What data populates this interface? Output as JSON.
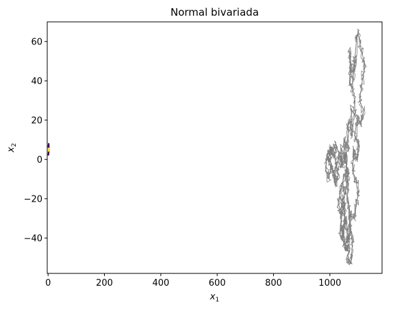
{
  "chart_data": {
    "type": "line",
    "title": "Normal bivariada",
    "xlabel": {
      "base": "x",
      "sub": "1"
    },
    "ylabel": {
      "base": "x",
      "sub": "2"
    },
    "xlim": [
      -3,
      1185
    ],
    "ylim": [
      -58,
      70
    ],
    "xticks": [
      0,
      200,
      400,
      600,
      800,
      1000
    ],
    "yticks": [
      -40,
      -20,
      0,
      20,
      40,
      60
    ],
    "grid": false,
    "legend": "none",
    "series": [
      {
        "style": "random-walk-path",
        "color": "#808080",
        "x": [
          1000,
          990,
          985,
          995,
          1005,
          1020,
          1015,
          1035,
          1045,
          1040,
          1055,
          1050,
          1065,
          1060,
          1070,
          1080,
          1075,
          1090,
          1085,
          1070,
          1072,
          1068,
          1078,
          1090,
          1080,
          1095,
          1100,
          1112,
          1125,
          1115,
          1105,
          1120,
          1110,
          1098,
          1088,
          1102,
          1095,
          1085,
          1080,
          1092,
          1100,
          1093,
          1085,
          1070,
          1075,
          1062,
          1055,
          1060,
          1050,
          1045,
          1055,
          1065,
          1070,
          1060,
          1075,
          1080,
          1070,
          1068,
          1062,
          1065,
          1058,
          1060,
          1050,
          1052,
          1042,
          1040,
          1035,
          1045,
          1055,
          1050,
          1040,
          1030,
          1038,
          1048,
          1060,
          1055,
          1045,
          1030,
          1020,
          1010,
          1000,
          995,
          1010,
          1020,
          1030,
          1025,
          1015,
          1005,
          1000
        ],
        "y": [
          -2,
          3,
          -5,
          -10,
          -3,
          -12,
          -6,
          2,
          -4,
          6,
          0,
          10,
          5,
          14,
          20,
          12,
          26,
          22,
          34,
          40,
          48,
          56,
          44,
          52,
          38,
          62,
          64,
          55,
          48,
          40,
          30,
          25,
          18,
          22,
          12,
          8,
          0,
          5,
          -6,
          -10,
          -18,
          -24,
          -30,
          -28,
          -36,
          -40,
          -44,
          -46,
          -42,
          -35,
          -30,
          -38,
          -46,
          -50,
          -53,
          -42,
          -34,
          -26,
          -20,
          -10,
          -4,
          -14,
          -18,
          -24,
          -20,
          -30,
          -38,
          -40,
          -32,
          -24,
          -28,
          -22,
          -16,
          -10,
          -6,
          2,
          -2,
          4,
          8,
          4,
          6,
          0,
          -6,
          -12,
          -8,
          -4,
          2,
          4,
          0
        ]
      },
      {
        "style": "short-segment",
        "color": "#440154",
        "x": [
          1,
          3,
          2,
          1
        ],
        "y": [
          2,
          5,
          8,
          6
        ]
      },
      {
        "style": "short-segment",
        "color": "#fde725",
        "x": [
          2,
          3
        ],
        "y": [
          4,
          6
        ]
      }
    ]
  }
}
